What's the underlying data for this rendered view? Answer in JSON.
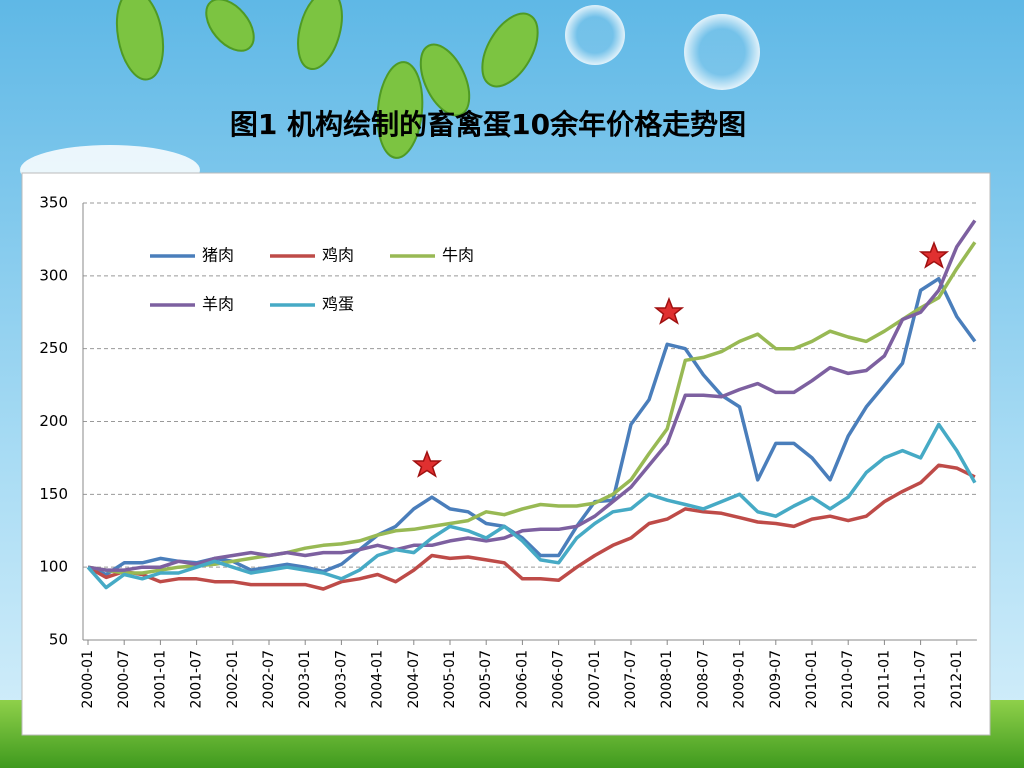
{
  "chart_data": {
    "type": "line",
    "title": "图1   机构绘制的畜禽蛋10余年价格走势图",
    "categories": [
      "2000-01",
      null,
      "2000-07",
      null,
      "2001-01",
      null,
      "2001-07",
      null,
      "2002-01",
      null,
      "2002-07",
      null,
      "2003-01",
      null,
      "2003-07",
      null,
      "2004-01",
      null,
      "2004-07",
      null,
      "2005-01",
      null,
      "2005-07",
      null,
      "2006-01",
      null,
      "2006-07",
      null,
      "2007-01",
      null,
      "2007-07",
      null,
      "2008-01",
      null,
      "2008-07",
      null,
      "2009-01",
      null,
      "2009-07",
      null,
      "2010-01",
      null,
      "2010-07",
      null,
      "2011-01",
      null,
      "2011-07",
      null,
      "2012-01",
      null
    ],
    "series": [
      {
        "name": "猪肉",
        "color": "#4a7ebb",
        "values": [
          100,
          95,
          103,
          103,
          106,
          104,
          103,
          106,
          104,
          98,
          100,
          102,
          100,
          97,
          102,
          112,
          122,
          128,
          140,
          148,
          140,
          138,
          130,
          128,
          120,
          108,
          108,
          128,
          145,
          146,
          198,
          215,
          253,
          250,
          232,
          218,
          210,
          160,
          185,
          185,
          175,
          160,
          190,
          210,
          225,
          240,
          290,
          298,
          272,
          255
        ]
      },
      {
        "name": "鸡肉",
        "color": "#be4b48",
        "values": [
          100,
          93,
          97,
          95,
          90,
          92,
          92,
          90,
          90,
          88,
          88,
          88,
          88,
          85,
          90,
          92,
          95,
          90,
          98,
          108,
          106,
          107,
          105,
          103,
          92,
          92,
          91,
          100,
          108,
          115,
          120,
          130,
          133,
          140,
          138,
          137,
          134,
          131,
          130,
          128,
          133,
          135,
          132,
          135,
          145,
          152,
          158,
          170,
          168,
          162
        ]
      },
      {
        "name": "牛肉",
        "color": "#98b954",
        "values": [
          100,
          98,
          96,
          96,
          98,
          100,
          101,
          102,
          104,
          106,
          108,
          110,
          113,
          115,
          116,
          118,
          122,
          125,
          126,
          128,
          130,
          132,
          138,
          136,
          140,
          143,
          142,
          142,
          144,
          150,
          160,
          178,
          195,
          242,
          244,
          248,
          255,
          260,
          250,
          250,
          255,
          262,
          258,
          255,
          262,
          270,
          278,
          285,
          305,
          323
        ]
      },
      {
        "name": "羊肉",
        "color": "#7d60a0",
        "values": [
          100,
          98,
          98,
          100,
          100,
          104,
          102,
          106,
          108,
          110,
          108,
          110,
          108,
          110,
          110,
          112,
          115,
          112,
          115,
          115,
          118,
          120,
          118,
          120,
          125,
          126,
          126,
          128,
          135,
          145,
          155,
          170,
          185,
          218,
          218,
          217,
          222,
          226,
          220,
          220,
          228,
          237,
          233,
          235,
          245,
          270,
          275,
          290,
          320,
          338
        ]
      },
      {
        "name": "鸡蛋",
        "color": "#46aac5",
        "values": [
          100,
          86,
          95,
          92,
          96,
          96,
          100,
          104,
          100,
          96,
          98,
          100,
          98,
          96,
          92,
          98,
          108,
          112,
          110,
          120,
          128,
          125,
          120,
          128,
          118,
          105,
          103,
          120,
          130,
          138,
          140,
          150,
          146,
          143,
          140,
          145,
          150,
          138,
          135,
          142,
          148,
          140,
          148,
          165,
          175,
          180,
          175,
          198,
          180,
          158
        ]
      }
    ],
    "ylim": [
      50,
      350
    ],
    "yticks": [
      50,
      100,
      150,
      200,
      250,
      300,
      350
    ],
    "grid": true
  }
}
